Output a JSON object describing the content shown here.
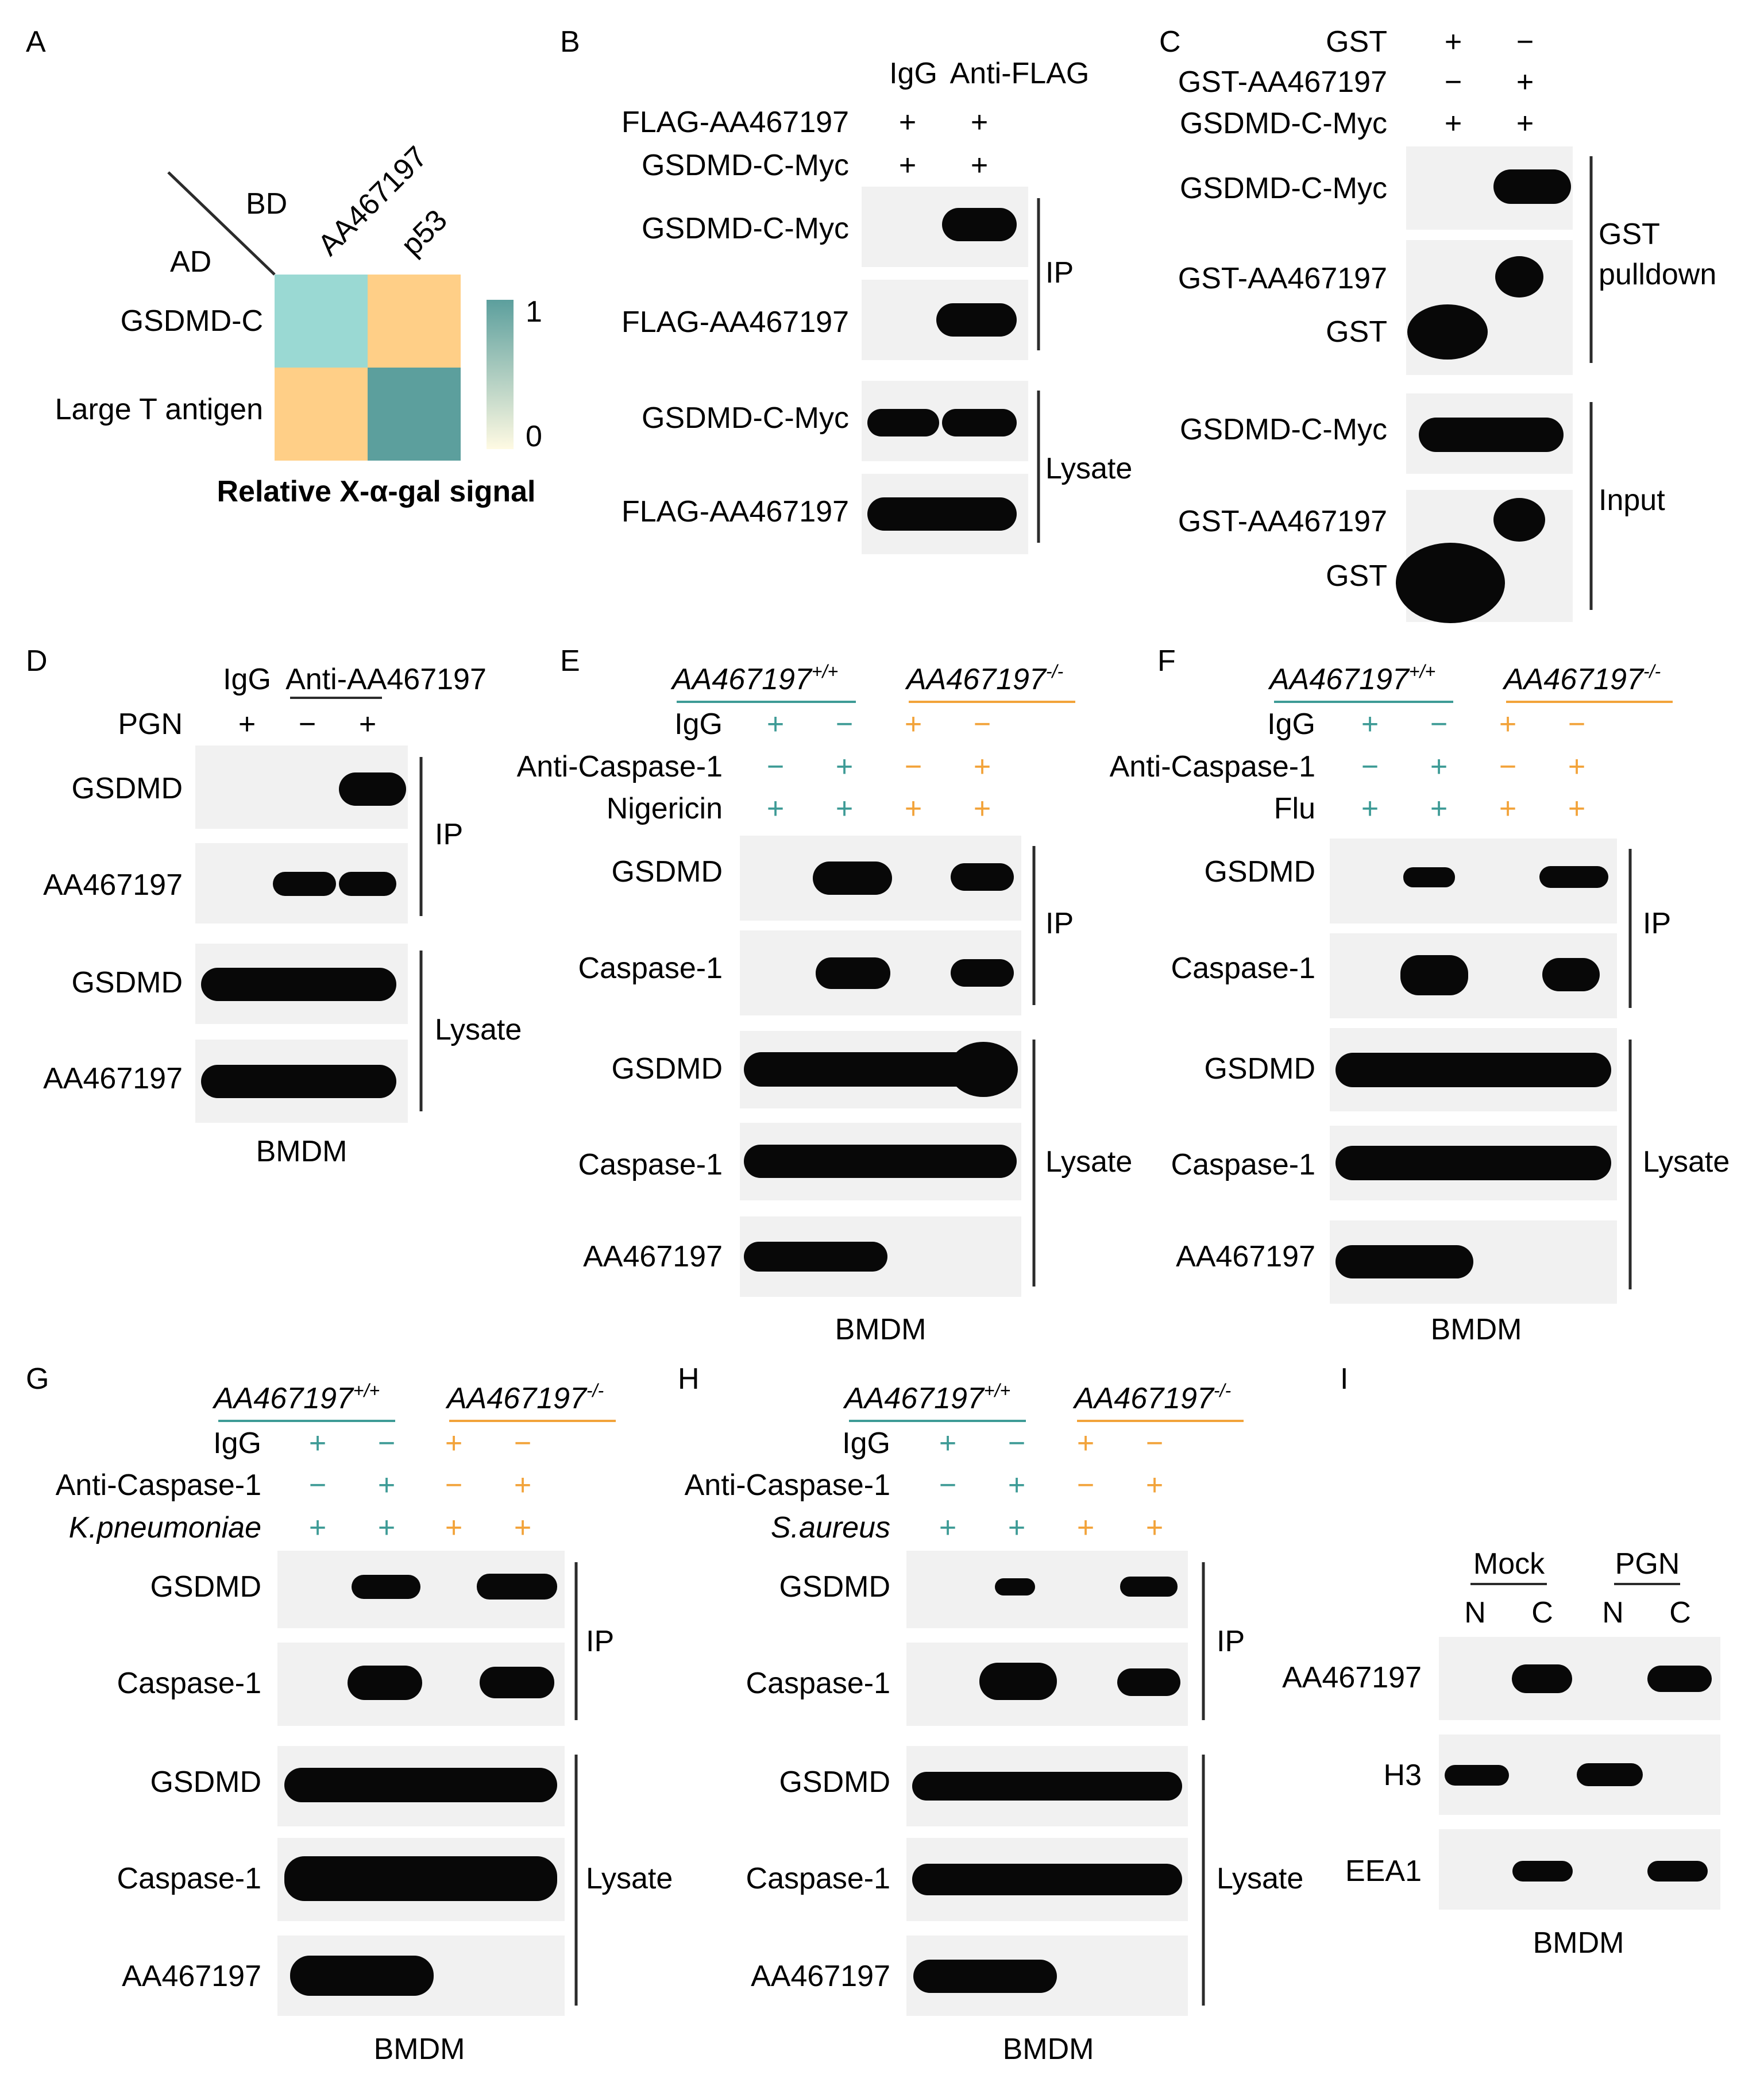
{
  "colors": {
    "teal": "#3e9b96",
    "orange": "#f2a33a",
    "hm_low": "#fffae3",
    "hm_teal": "#5c9f9d",
    "hm_light_teal": "#9ad9d3",
    "hm_orange": "#ffcf87",
    "band": "#080808",
    "blot_bg": "#f1f1f1",
    "text": "#2b2b2b"
  },
  "panelA": {
    "letter": "A",
    "bd": "BD",
    "ad": "AD",
    "columns": [
      "AA467197",
      "p53"
    ],
    "rows": [
      "GSDMD-C",
      "Large T antigen"
    ],
    "matrix": [
      [
        0.3,
        0.25
      ],
      [
        0.25,
        1.0
      ]
    ],
    "cell_colors": [
      [
        "hm_light_teal",
        "hm_orange"
      ],
      [
        "hm_orange",
        "hm_teal"
      ]
    ],
    "colorbar_max": "1",
    "colorbar_min": "0",
    "xlabel": "Relative X-α-gal signal"
  },
  "panelB": {
    "letter": "B",
    "lanes": [
      "IgG",
      "Anti-FLAG"
    ],
    "conditions": [
      {
        "label": "FLAG-AA467197",
        "values": [
          "+",
          "+"
        ]
      },
      {
        "label": "GSDMD-C-Myc",
        "values": [
          "+",
          "+"
        ]
      }
    ],
    "blots": [
      "GSDMD-C-Myc",
      "FLAG-AA467197",
      "GSDMD-C-Myc",
      "FLAG-AA467197"
    ],
    "groups": [
      "IP",
      "Lysate"
    ]
  },
  "panelC": {
    "letter": "C",
    "conditions": [
      {
        "label": "GST",
        "values": [
          "+",
          "−"
        ]
      },
      {
        "label": "GST-AA467197",
        "values": [
          "−",
          "+"
        ]
      },
      {
        "label": "GSDMD-C-Myc",
        "values": [
          "+",
          "+"
        ]
      }
    ],
    "blots": [
      "GSDMD-C-Myc",
      "GST-AA467197",
      "GST",
      "GSDMD-C-Myc",
      "GST-AA467197",
      "GST"
    ],
    "groups": [
      "GST",
      "pulldown",
      "Input"
    ]
  },
  "panelD": {
    "letter": "D",
    "lanes": [
      "IgG",
      "Anti-AA467197"
    ],
    "conditions": [
      {
        "label": "PGN",
        "values": [
          "+",
          "−",
          "+"
        ]
      }
    ],
    "blots": [
      "GSDMD",
      "AA467197",
      "GSDMD",
      "AA467197"
    ],
    "groups": [
      "IP",
      "Lysate"
    ],
    "footer": "BMDM"
  },
  "panelE": {
    "letter": "E",
    "genotype_base": "AA467197",
    "genotypes": [
      "+/+",
      "-/-"
    ],
    "conditions": [
      {
        "label": "IgG",
        "values": [
          "+",
          "−",
          "+",
          "−"
        ]
      },
      {
        "label": "Anti-Caspase-1",
        "values": [
          "−",
          "+",
          "−",
          "+"
        ]
      },
      {
        "label": "Nigericin",
        "values": [
          "+",
          "+",
          "+",
          "+"
        ]
      }
    ],
    "blots": [
      "GSDMD",
      "Caspase-1",
      "GSDMD",
      "Caspase-1",
      "AA467197"
    ],
    "groups": [
      "IP",
      "Lysate"
    ],
    "footer": "BMDM"
  },
  "panelF": {
    "letter": "F",
    "genotype_base": "AA467197",
    "genotypes": [
      "+/+",
      "-/-"
    ],
    "conditions": [
      {
        "label": "IgG",
        "values": [
          "+",
          "−",
          "+",
          "−"
        ]
      },
      {
        "label": "Anti-Caspase-1",
        "values": [
          "−",
          "+",
          "−",
          "+"
        ]
      },
      {
        "label": "Flu",
        "values": [
          "+",
          "+",
          "+",
          "+"
        ]
      }
    ],
    "blots": [
      "GSDMD",
      "Caspase-1",
      "GSDMD",
      "Caspase-1",
      "AA467197"
    ],
    "groups": [
      "IP",
      "Lysate"
    ],
    "footer": "BMDM"
  },
  "panelG": {
    "letter": "G",
    "genotype_base": "AA467197",
    "genotypes": [
      "+/+",
      "-/-"
    ],
    "conditions": [
      {
        "label": "IgG",
        "values": [
          "+",
          "−",
          "+",
          "−"
        ]
      },
      {
        "label": "Anti-Caspase-1",
        "values": [
          "−",
          "+",
          "−",
          "+"
        ]
      },
      {
        "label": "K.pneumoniae",
        "values": [
          "+",
          "+",
          "+",
          "+"
        ]
      }
    ],
    "blots": [
      "GSDMD",
      "Caspase-1",
      "GSDMD",
      "Caspase-1",
      "AA467197"
    ],
    "groups": [
      "IP",
      "Lysate"
    ],
    "footer": "BMDM"
  },
  "panelH": {
    "letter": "H",
    "genotype_base": "AA467197",
    "genotypes": [
      "+/+",
      "-/-"
    ],
    "conditions": [
      {
        "label": "IgG",
        "values": [
          "+",
          "−",
          "+",
          "−"
        ]
      },
      {
        "label": "Anti-Caspase-1",
        "values": [
          "−",
          "+",
          "−",
          "+"
        ]
      },
      {
        "label": "S.aureus",
        "values": [
          "+",
          "+",
          "+",
          "+"
        ]
      }
    ],
    "blots": [
      "GSDMD",
      "Caspase-1",
      "GSDMD",
      "Caspase-1",
      "AA467197"
    ],
    "groups": [
      "IP",
      "Lysate"
    ],
    "footer": "BMDM"
  },
  "panelI": {
    "letter": "I",
    "groups": [
      "Mock",
      "PGN"
    ],
    "fractions": [
      "N",
      "C",
      "N",
      "C"
    ],
    "blots": [
      "AA467197",
      "H3",
      "EEA1"
    ],
    "footer": "BMDM"
  }
}
